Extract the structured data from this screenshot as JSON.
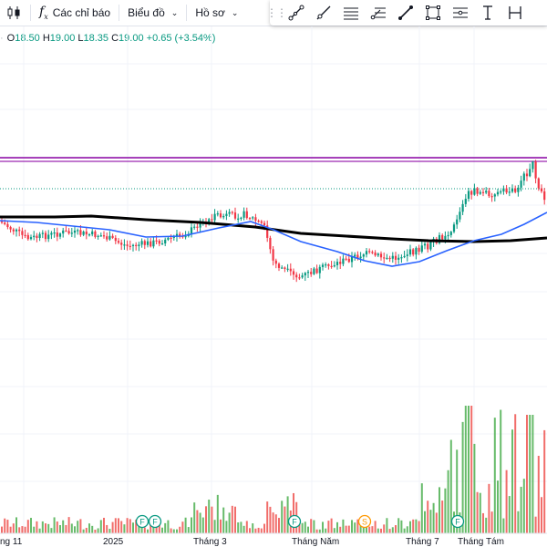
{
  "toolbar": {
    "candle_icon": "candlestick-icon",
    "indicators_label": "Các chỉ báo",
    "chart_label": "Biểu đồ",
    "profile_label": "Hồ sơ"
  },
  "drawing_tools": [
    {
      "name": "trend-line-icon"
    },
    {
      "name": "ray-icon"
    },
    {
      "name": "parallel-channel-icon"
    },
    {
      "name": "fib-retracement-icon"
    },
    {
      "name": "pencil-icon"
    },
    {
      "name": "rectangle-icon"
    },
    {
      "name": "horizontal-line-tool-icon"
    },
    {
      "name": "text-icon"
    },
    {
      "name": "measure-icon"
    }
  ],
  "ohlc": {
    "o_key": "O",
    "o_val": "18.50",
    "h_key": "H",
    "h_val": "19.00",
    "l_key": "L",
    "l_val": "18.35",
    "c_key": "C",
    "c_val": "19.00",
    "change": "+0.65 (+3.54%)"
  },
  "colors": {
    "up": "#089981",
    "down": "#f23645",
    "vol_up": "#4caf50",
    "vol_down": "#ef5350",
    "ma_fast": "#2962ff",
    "ma_slow": "#000000",
    "resistance": "#9c27b0"
  },
  "x_axis_labels": [
    {
      "text": "ng 11"
    },
    {
      "text": "2025"
    },
    {
      "text": "Tháng 3"
    },
    {
      "text": "Tháng Năm"
    },
    {
      "text": "Tháng 7"
    },
    {
      "text": "Tháng Tám"
    }
  ],
  "event_markers": [
    {
      "letter": "F"
    },
    {
      "letter": "F"
    },
    {
      "letter": "F"
    },
    {
      "letter": "S"
    },
    {
      "letter": "F"
    }
  ]
}
